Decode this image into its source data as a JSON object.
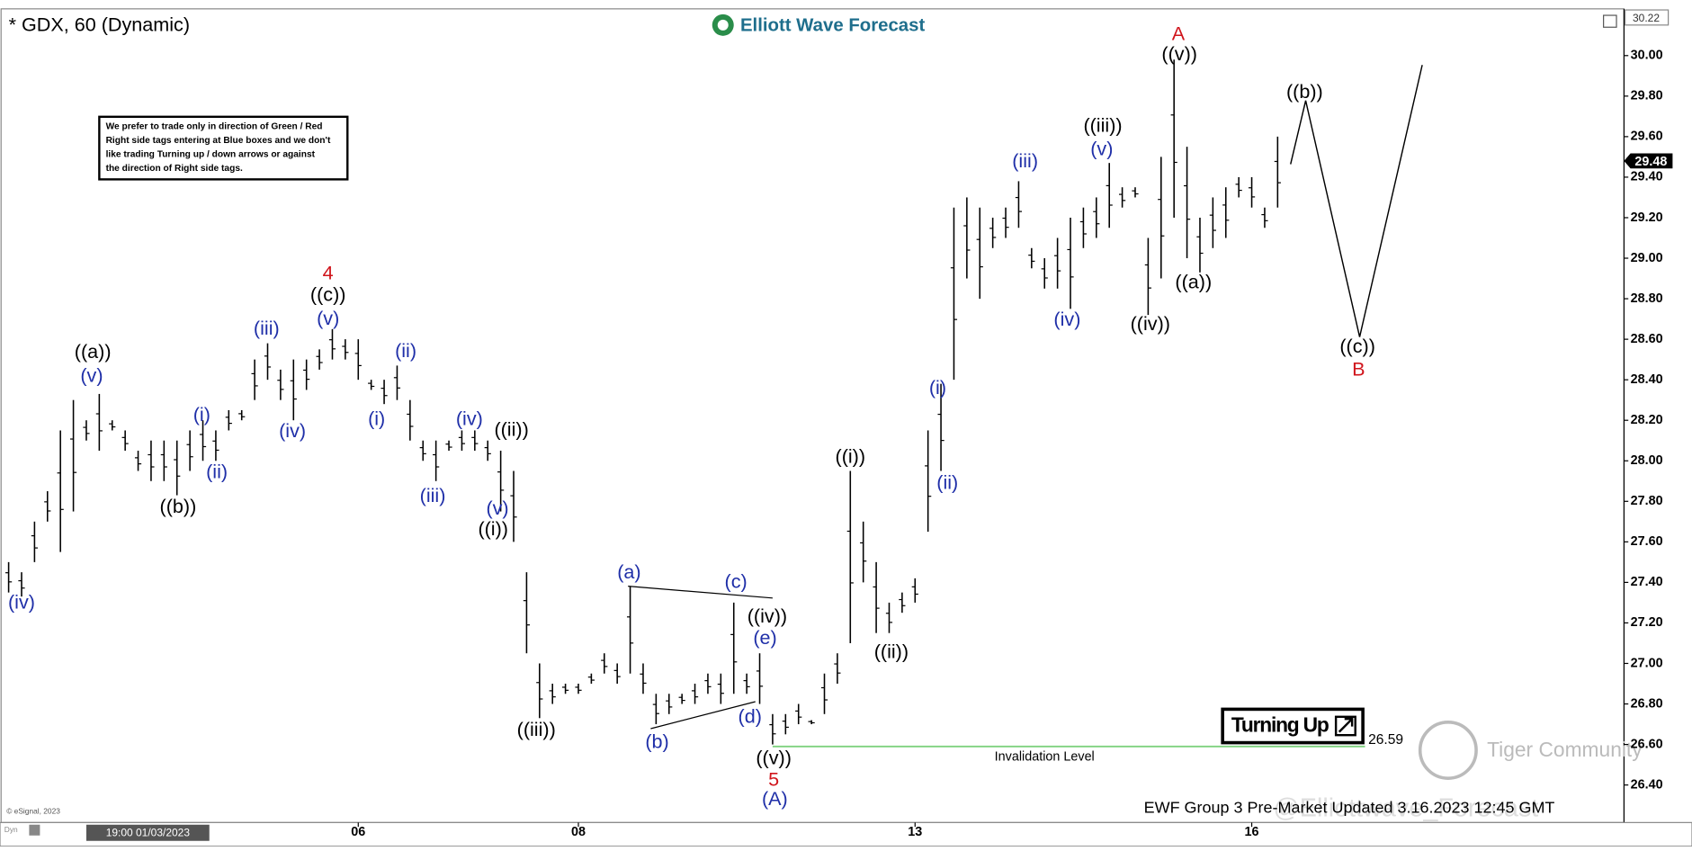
{
  "header": {
    "symbol": "* GDX, 60 (Dynamic)",
    "logo": "Elliott Wave Forecast"
  },
  "note": {
    "lines": [
      "We prefer to trade only in direction of Green / Red",
      "Right side tags entering at Blue boxes and we don't",
      "like trading Turning up / down arrows or against",
      "the direction of Right side tags."
    ]
  },
  "chart_data": {
    "type": "range-bar",
    "color": "#000000",
    "categories": [
      null,
      null,
      null,
      null,
      null,
      null,
      null,
      null,
      null,
      null,
      null,
      null,
      null,
      null,
      null,
      null,
      null,
      null,
      null,
      null,
      null,
      null,
      null,
      null,
      null,
      null,
      null,
      "06",
      null,
      null,
      null,
      null,
      null,
      null,
      null,
      null,
      null,
      null,
      null,
      null,
      null,
      null,
      null,
      null,
      "08",
      null,
      null,
      null,
      null,
      null,
      null,
      null,
      null,
      null,
      null,
      null,
      null,
      null,
      null,
      null,
      null,
      null,
      null,
      null,
      null,
      null,
      null,
      null,
      null,
      null,
      "13",
      null,
      null,
      null,
      null,
      null,
      null,
      null,
      null,
      null,
      null,
      null,
      null,
      null,
      null,
      null,
      null,
      null,
      null,
      null,
      null,
      null,
      null,
      null,
      null,
      null,
      "16",
      null,
      null
    ],
    "high": [
      27.5,
      27.45,
      27.7,
      27.85,
      28.15,
      28.3,
      28.2,
      28.33,
      28.2,
      28.15,
      28.05,
      28.1,
      28.1,
      28.1,
      28.15,
      28.2,
      28.15,
      28.25,
      28.25,
      28.5,
      28.58,
      28.45,
      28.5,
      28.5,
      28.55,
      28.65,
      28.6,
      28.6,
      28.4,
      28.4,
      28.47,
      28.3,
      28.1,
      28.1,
      28.1,
      28.15,
      28.15,
      28.1,
      28.05,
      27.95,
      27.45,
      27.0,
      26.9,
      26.9,
      26.9,
      26.95,
      27.05,
      27.0,
      27.38,
      27.0,
      26.85,
      26.85,
      26.85,
      26.9,
      26.95,
      26.95,
      27.3,
      26.95,
      27.05,
      26.75,
      26.75,
      26.8,
      26.72,
      26.95,
      27.05,
      27.95,
      27.7,
      27.5,
      27.3,
      27.35,
      27.42,
      28.15,
      28.38,
      29.25,
      29.3,
      29.25,
      29.2,
      29.25,
      29.38,
      29.05,
      29.0,
      29.1,
      29.2,
      29.25,
      29.3,
      29.47,
      29.35,
      29.35,
      29.1,
      29.5,
      29.98,
      29.55,
      29.2,
      29.3,
      29.35,
      29.4,
      29.4,
      29.25,
      29.6
    ],
    "low": [
      27.35,
      27.33,
      27.5,
      27.7,
      27.55,
      27.75,
      28.1,
      28.05,
      28.15,
      28.05,
      27.95,
      27.9,
      27.9,
      27.83,
      27.95,
      28.0,
      28.0,
      28.15,
      28.2,
      28.3,
      28.4,
      28.3,
      28.2,
      28.35,
      28.45,
      28.5,
      28.5,
      28.4,
      28.35,
      28.28,
      28.3,
      28.1,
      28.0,
      27.9,
      28.05,
      28.05,
      28.05,
      28.0,
      27.75,
      27.6,
      27.05,
      26.73,
      26.8,
      26.85,
      26.85,
      26.9,
      26.95,
      26.9,
      26.95,
      26.85,
      26.7,
      26.75,
      26.8,
      26.8,
      26.85,
      26.8,
      26.85,
      26.85,
      26.8,
      26.6,
      26.65,
      26.7,
      26.7,
      26.75,
      26.9,
      27.1,
      27.4,
      27.15,
      27.15,
      27.25,
      27.3,
      27.65,
      27.95,
      28.4,
      28.9,
      28.8,
      29.05,
      29.1,
      29.15,
      28.95,
      28.85,
      28.85,
      28.75,
      29.05,
      29.1,
      29.15,
      29.25,
      29.3,
      28.72,
      28.9,
      29.2,
      29.0,
      28.93,
      29.05,
      29.1,
      29.3,
      29.25,
      29.15,
      29.25
    ],
    "ylim": [
      26.22,
      30.22
    ],
    "yticks": [
      {
        "value": 26.4,
        "label": "26.40"
      },
      {
        "value": 26.6,
        "label": "26.60"
      },
      {
        "value": 26.8,
        "label": "26.80"
      },
      {
        "value": 27.0,
        "label": "27.00"
      },
      {
        "value": 27.2,
        "label": "27.20"
      },
      {
        "value": 27.4,
        "label": "27.40"
      },
      {
        "value": 27.6,
        "label": "27.60"
      },
      {
        "value": 27.8,
        "label": "27.80"
      },
      {
        "value": 28.0,
        "label": "28.00"
      },
      {
        "value": 28.2,
        "label": "28.20"
      },
      {
        "value": 28.4,
        "label": "28.40"
      },
      {
        "value": 28.6,
        "label": "28.60"
      },
      {
        "value": 28.8,
        "label": "28.80"
      },
      {
        "value": 29.0,
        "label": "29.00"
      },
      {
        "value": 29.2,
        "label": "29.20"
      },
      {
        "value": 29.4,
        "label": "29.40"
      },
      {
        "value": 29.6,
        "label": "29.60"
      },
      {
        "value": 29.8,
        "label": "29.80"
      },
      {
        "value": 30.0,
        "label": "30.00"
      }
    ],
    "last_price": 29.48,
    "invalidation": {
      "label": "Invalidation Level",
      "value": 26.59,
      "color": "#7fd27f"
    },
    "annotations": [
      {
        "text": "((a))",
        "color": "#000000"
      },
      {
        "text": "((b))",
        "color": "#000000"
      },
      {
        "text": "((c))",
        "color": "#000000"
      },
      {
        "text": "((ii))",
        "color": "#000000"
      },
      {
        "text": "((i))",
        "color": "#000000"
      },
      {
        "text": "((iii))",
        "color": "#000000"
      },
      {
        "text": "((iv))",
        "color": "#000000"
      },
      {
        "text": "((v))",
        "color": "#000000"
      },
      {
        "text": "((i))",
        "color": "#000000"
      },
      {
        "text": "((ii))",
        "color": "#000000"
      },
      {
        "text": "((v))",
        "color": "#000000"
      },
      {
        "text": "((iii))",
        "color": "#000000"
      },
      {
        "text": "((iv))",
        "color": "#000000"
      },
      {
        "text": "((a))",
        "color": "#000000"
      },
      {
        "text": "((b))",
        "color": "#000000"
      },
      {
        "text": "((c))",
        "color": "#000000"
      },
      {
        "text": "(iv)",
        "color": "#1f2fa8"
      },
      {
        "text": "(v)",
        "color": "#1f2fa8"
      },
      {
        "text": "(i)",
        "color": "#1f2fa8"
      },
      {
        "text": "(ii)",
        "color": "#1f2fa8"
      },
      {
        "text": "(iii)",
        "color": "#1f2fa8"
      },
      {
        "text": "(iv)",
        "color": "#1f2fa8"
      },
      {
        "text": "(v)",
        "color": "#1f2fa8"
      },
      {
        "text": "(i)",
        "color": "#1f2fa8"
      },
      {
        "text": "(ii)",
        "color": "#1f2fa8"
      },
      {
        "text": "(iii)",
        "color": "#1f2fa8"
      },
      {
        "text": "(iv)",
        "color": "#1f2fa8"
      },
      {
        "text": "(v)",
        "color": "#1f2fa8"
      },
      {
        "text": "(a)",
        "color": "#1f2fa8"
      },
      {
        "text": "(b)",
        "color": "#1f2fa8"
      },
      {
        "text": "(c)",
        "color": "#1f2fa8"
      },
      {
        "text": "(d)",
        "color": "#1f2fa8"
      },
      {
        "text": "(e)",
        "color": "#1f2fa8"
      },
      {
        "text": "(A)",
        "color": "#1f2fa8"
      },
      {
        "text": "(i)",
        "color": "#1f2fa8"
      },
      {
        "text": "(ii)",
        "color": "#1f2fa8"
      },
      {
        "text": "(iii)",
        "color": "#1f2fa8"
      },
      {
        "text": "(iv)",
        "color": "#1f2fa8"
      },
      {
        "text": "(v)",
        "color": "#1f2fa8"
      },
      {
        "text": "4",
        "color": "#d0141b"
      },
      {
        "text": "5",
        "color": "#d0141b"
      },
      {
        "text": "A",
        "color": "#d0141b"
      },
      {
        "text": "B",
        "color": "#d0141b"
      }
    ]
  },
  "signal": "Turning Up",
  "footer": {
    "updated": "EWF Group 3 Pre-Market Updated 3.16.2023 12:45 GMT",
    "copyright": "© eSignal, 2023",
    "cursor_date": "19:00 01/03/2023",
    "mode": "Dyn"
  },
  "watermark": {
    "community": "Tiger Community",
    "handle": "@Elliottwave_Forecast"
  }
}
